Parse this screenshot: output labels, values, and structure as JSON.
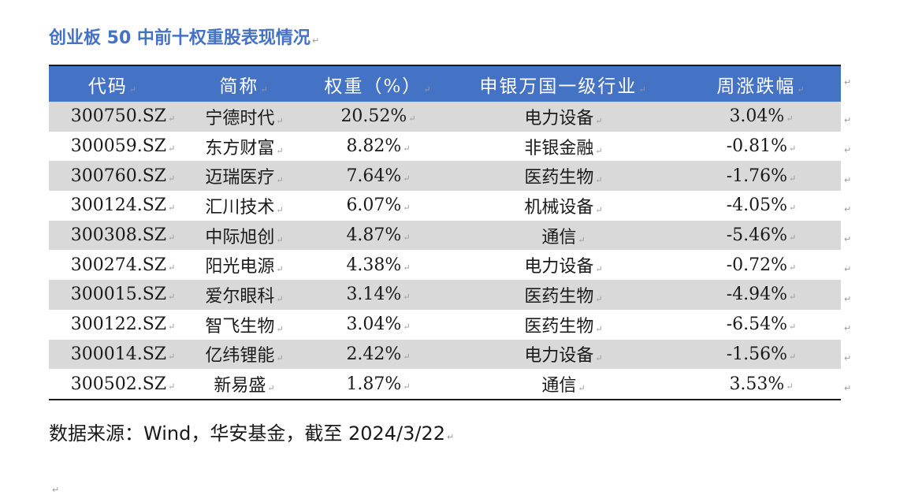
{
  "title": "创业板 50 中前十权重股表现情况",
  "para_mark": "↵",
  "table": {
    "headers": [
      "代码",
      "简称",
      "权重（%）",
      "申银万国一级行业",
      "周涨跌幅"
    ],
    "rows": [
      [
        "300750.SZ",
        "宁德时代",
        "20.52%",
        "电力设备",
        "3.04%"
      ],
      [
        "300059.SZ",
        "东方财富",
        "8.82%",
        "非银金融",
        "-0.81%"
      ],
      [
        "300760.SZ",
        "迈瑞医疗",
        "7.64%",
        "医药生物",
        "-1.76%"
      ],
      [
        "300124.SZ",
        "汇川技术",
        "6.07%",
        "机械设备",
        "-4.05%"
      ],
      [
        "300308.SZ",
        "中际旭创",
        "4.87%",
        "通信",
        "-5.46%"
      ],
      [
        "300274.SZ",
        "阳光电源",
        "4.38%",
        "电力设备",
        "-0.72%"
      ],
      [
        "300015.SZ",
        "爱尔眼科",
        "3.14%",
        "医药生物",
        "-4.94%"
      ],
      [
        "300122.SZ",
        "智飞生物",
        "3.04%",
        "医药生物",
        "-6.54%"
      ],
      [
        "300014.SZ",
        "亿纬锂能",
        "2.42%",
        "电力设备",
        "-1.56%"
      ],
      [
        "300502.SZ",
        "新易盛",
        "1.87%",
        "通信",
        "3.53%"
      ]
    ]
  },
  "source": "数据来源：Wind，华安基金，截至 2024/3/22",
  "colors": {
    "title": "#4472c4",
    "header_bg": "#4472c4",
    "stripe": "#d9d9d9"
  }
}
